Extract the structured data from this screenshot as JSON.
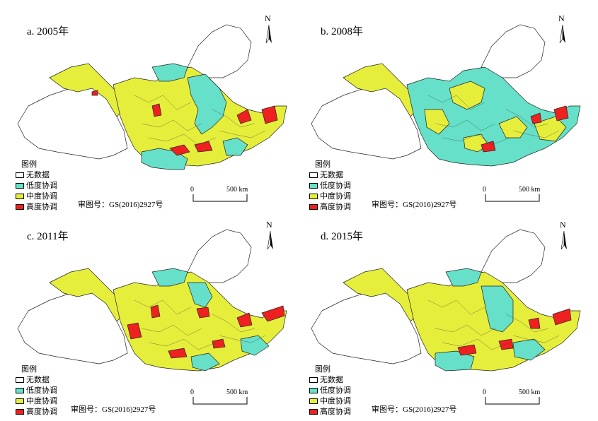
{
  "panels": [
    {
      "title": "a. 2005年"
    },
    {
      "title": "b. 2008年"
    },
    {
      "title": "c. 2011年"
    },
    {
      "title": "d. 2015年"
    }
  ],
  "legend": {
    "title": "图例",
    "items": [
      {
        "label": "无数据",
        "color": "#ffffff"
      },
      {
        "label": "低度协调",
        "color": "#66e0c8"
      },
      {
        "label": "中度协调",
        "color": "#e6ee3c"
      },
      {
        "label": "高度协调",
        "color": "#ee2020"
      }
    ]
  },
  "approval_number": "审图号：GS(2016)2927号",
  "scale": {
    "zero": "0",
    "max": "500 km"
  },
  "north_label": "N"
}
